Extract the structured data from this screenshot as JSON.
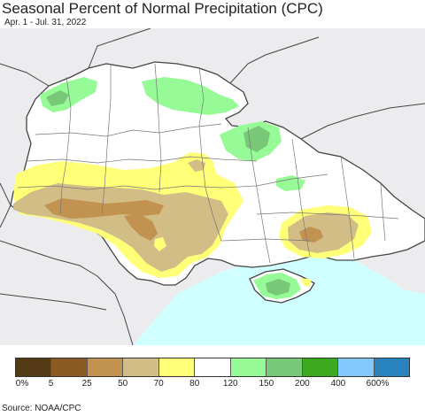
{
  "title": "Seasonal Percent of Normal Precipitation (CPC)",
  "subtitle": "Apr. 1 - Jul. 31, 2022",
  "source": "Source: NOAA/CPC",
  "legend": {
    "colors": [
      "#543a14",
      "#8c5a24",
      "#c29250",
      "#d2bd86",
      "#ffff78",
      "#ffffff",
      "#96fa96",
      "#78c878",
      "#3caa1e",
      "#82c8fa",
      "#2882be"
    ],
    "labels": [
      "0%",
      "5",
      "25",
      "50",
      "70",
      "80",
      "120",
      "150",
      "200",
      "400",
      "600%"
    ]
  },
  "map_colors": {
    "outside": "#ecebee",
    "sea": "#cfffff",
    "land": "#ffffff",
    "boundary": "#555555"
  }
}
